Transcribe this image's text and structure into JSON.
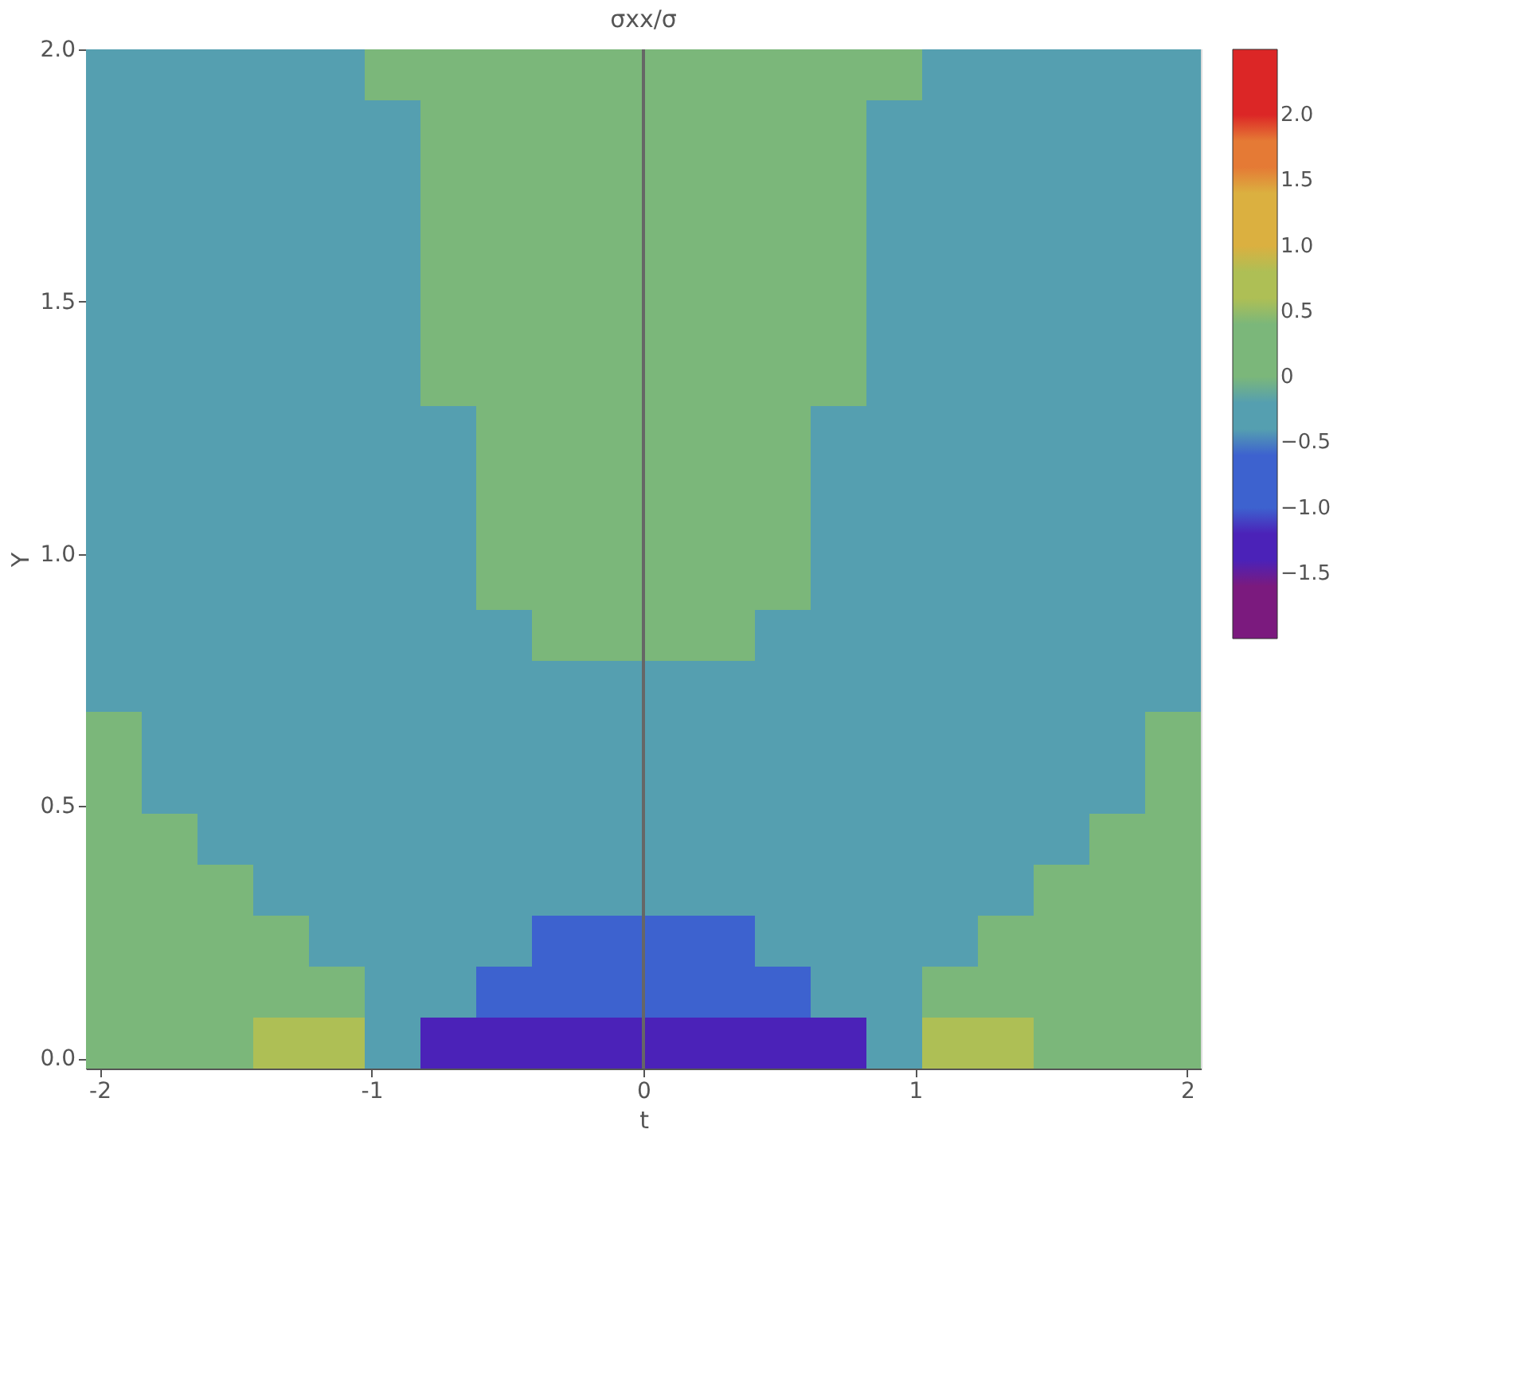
{
  "chart_data": {
    "type": "heatmap",
    "title": "σxx/σ",
    "xlabel": "t",
    "ylabel": "Y",
    "xlim": [
      -2.05,
      2.05
    ],
    "ylim": [
      -0.02,
      2.0
    ],
    "xticks": [
      -2,
      -1,
      0,
      1,
      2
    ],
    "yticks": [
      {
        "value": 0,
        "label": "0.0"
      },
      {
        "value": 0.5,
        "label": "0.5"
      },
      {
        "value": 1,
        "label": "1.0"
      },
      {
        "value": 1.5,
        "label": "1.5"
      },
      {
        "value": 2,
        "label": "2.0"
      }
    ],
    "clim": [
      -2,
      2.5
    ],
    "cticks": [
      {
        "value": -1.5,
        "label": "−1.5"
      },
      {
        "value": -1,
        "label": "−1.0"
      },
      {
        "value": -0.5,
        "label": "−0.5"
      },
      0,
      {
        "value": 0.5,
        "label": "0.5"
      },
      {
        "value": 1,
        "label": "1.0"
      },
      {
        "value": 1.5,
        "label": "1.5"
      },
      {
        "value": 2,
        "label": "2.0"
      }
    ],
    "colors": [
      "#7b1a7e",
      "#4b22b8",
      "#3d62cf",
      "#559fb0",
      "#7bb77a",
      "#aebf55",
      "#dbb040",
      "#e57a35",
      "#dc2626"
    ],
    "ref_lines": [
      {
        "axis": "x",
        "value": 0,
        "color": "#666666"
      }
    ],
    "cells": [
      [
        -0.25,
        -0.25,
        -0.25,
        -0.25,
        -0.25,
        0.25,
        0.25,
        0.25,
        0.25,
        0.25,
        0.25,
        0.25,
        0.25,
        0.25,
        0.25,
        -0.25,
        -0.25,
        -0.25,
        -0.25,
        -0.25
      ],
      [
        -0.25,
        -0.25,
        -0.25,
        -0.25,
        -0.25,
        -0.25,
        0.25,
        0.25,
        0.25,
        0.25,
        0.25,
        0.25,
        0.25,
        0.25,
        -0.25,
        -0.25,
        -0.25,
        -0.25,
        -0.25,
        -0.25
      ],
      [
        -0.25,
        -0.25,
        -0.25,
        -0.25,
        -0.25,
        -0.25,
        0.25,
        0.25,
        0.25,
        0.25,
        0.25,
        0.25,
        0.25,
        0.25,
        -0.25,
        -0.25,
        -0.25,
        -0.25,
        -0.25,
        -0.25
      ],
      [
        -0.25,
        -0.25,
        -0.25,
        -0.25,
        -0.25,
        -0.25,
        0.25,
        0.25,
        0.25,
        0.25,
        0.25,
        0.25,
        0.25,
        0.25,
        -0.25,
        -0.25,
        -0.25,
        -0.25,
        -0.25,
        -0.25
      ],
      [
        -0.25,
        -0.25,
        -0.25,
        -0.25,
        -0.25,
        -0.25,
        0.25,
        0.25,
        0.25,
        0.25,
        0.25,
        0.25,
        0.25,
        0.25,
        -0.25,
        -0.25,
        -0.25,
        -0.25,
        -0.25,
        -0.25
      ],
      [
        -0.25,
        -0.25,
        -0.25,
        -0.25,
        -0.25,
        -0.25,
        0.25,
        0.25,
        0.25,
        0.25,
        0.25,
        0.25,
        0.25,
        0.25,
        -0.25,
        -0.25,
        -0.25,
        -0.25,
        -0.25,
        -0.25
      ],
      [
        -0.25,
        -0.25,
        -0.25,
        -0.25,
        -0.25,
        -0.25,
        0.25,
        0.25,
        0.25,
        0.25,
        0.25,
        0.25,
        0.25,
        0.25,
        -0.25,
        -0.25,
        -0.25,
        -0.25,
        -0.25,
        -0.25
      ],
      [
        -0.25,
        -0.25,
        -0.25,
        -0.25,
        -0.25,
        -0.25,
        -0.25,
        0.25,
        0.25,
        0.25,
        0.25,
        0.25,
        0.25,
        -0.25,
        -0.25,
        -0.25,
        -0.25,
        -0.25,
        -0.25,
        -0.25
      ],
      [
        -0.25,
        -0.25,
        -0.25,
        -0.25,
        -0.25,
        -0.25,
        -0.25,
        0.25,
        0.25,
        0.25,
        0.25,
        0.25,
        0.25,
        -0.25,
        -0.25,
        -0.25,
        -0.25,
        -0.25,
        -0.25,
        -0.25
      ],
      [
        -0.25,
        -0.25,
        -0.25,
        -0.25,
        -0.25,
        -0.25,
        -0.25,
        0.25,
        0.25,
        0.25,
        0.25,
        0.25,
        0.25,
        -0.25,
        -0.25,
        -0.25,
        -0.25,
        -0.25,
        -0.25,
        -0.25
      ],
      [
        -0.25,
        -0.25,
        -0.25,
        -0.25,
        -0.25,
        -0.25,
        -0.25,
        0.25,
        0.25,
        0.25,
        0.25,
        0.25,
        0.25,
        -0.25,
        -0.25,
        -0.25,
        -0.25,
        -0.25,
        -0.25,
        -0.25
      ],
      [
        -0.25,
        -0.25,
        -0.25,
        -0.25,
        -0.25,
        -0.25,
        -0.25,
        -0.25,
        0.25,
        0.25,
        0.25,
        0.25,
        -0.25,
        -0.25,
        -0.25,
        -0.25,
        -0.25,
        -0.25,
        -0.25,
        -0.25
      ],
      [
        -0.25,
        -0.25,
        -0.25,
        -0.25,
        -0.25,
        -0.25,
        -0.25,
        -0.25,
        -0.25,
        -0.25,
        -0.25,
        -0.25,
        -0.25,
        -0.25,
        -0.25,
        -0.25,
        -0.25,
        -0.25,
        -0.25,
        -0.25
      ],
      [
        0.25,
        -0.25,
        -0.25,
        -0.25,
        -0.25,
        -0.25,
        -0.25,
        -0.25,
        -0.25,
        -0.25,
        -0.25,
        -0.25,
        -0.25,
        -0.25,
        -0.25,
        -0.25,
        -0.25,
        -0.25,
        -0.25,
        0.25
      ],
      [
        0.25,
        -0.25,
        -0.25,
        -0.25,
        -0.25,
        -0.25,
        -0.25,
        -0.25,
        -0.25,
        -0.25,
        -0.25,
        -0.25,
        -0.25,
        -0.25,
        -0.25,
        -0.25,
        -0.25,
        -0.25,
        -0.25,
        0.25
      ],
      [
        0.25,
        0.25,
        -0.25,
        -0.25,
        -0.25,
        -0.25,
        -0.25,
        -0.25,
        -0.25,
        -0.25,
        -0.25,
        -0.25,
        -0.25,
        -0.25,
        -0.25,
        -0.25,
        -0.25,
        -0.25,
        0.25,
        0.25
      ],
      [
        0.25,
        0.25,
        0.25,
        -0.25,
        -0.25,
        -0.25,
        -0.25,
        -0.25,
        -0.25,
        -0.25,
        -0.25,
        -0.25,
        -0.25,
        -0.25,
        -0.25,
        -0.25,
        -0.25,
        0.25,
        0.25,
        0.25
      ],
      [
        0.25,
        0.25,
        0.25,
        0.25,
        -0.25,
        -0.25,
        -0.25,
        -0.25,
        -0.75,
        -0.75,
        -0.75,
        -0.75,
        -0.25,
        -0.25,
        -0.25,
        -0.25,
        0.25,
        0.25,
        0.25,
        0.25
      ],
      [
        0.25,
        0.25,
        0.25,
        0.25,
        0.25,
        -0.25,
        -0.25,
        -0.75,
        -0.75,
        -0.75,
        -0.75,
        -0.75,
        -0.75,
        -0.25,
        -0.25,
        0.25,
        0.25,
        0.25,
        0.25,
        0.25
      ],
      [
        0.25,
        0.25,
        0.25,
        0.75,
        0.75,
        -0.25,
        -1.25,
        -1.25,
        -1.25,
        -1.25,
        -1.25,
        -1.25,
        -1.25,
        -1.25,
        -0.25,
        0.75,
        0.75,
        0.25,
        0.25,
        0.25
      ]
    ]
  }
}
